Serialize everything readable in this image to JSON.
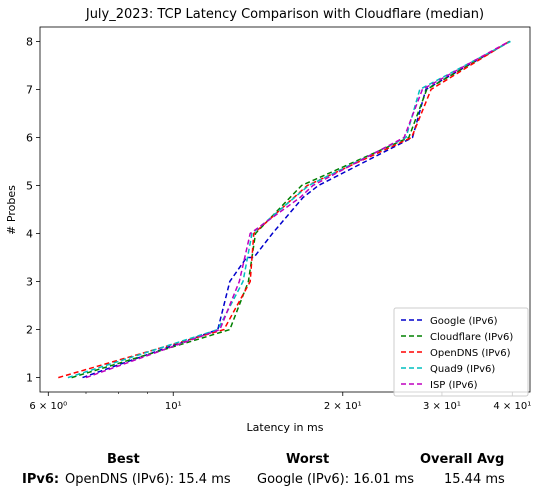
{
  "chart_data": {
    "type": "line",
    "title": "July_2023: TCP Latency Comparison with Cloudflare (median)",
    "xlabel": "Latency in ms",
    "ylabel": "# Probes",
    "xscale": "log",
    "xlim": [
      5.8,
      43
    ],
    "ylim": [
      0.7,
      8.3
    ],
    "xticks": [
      {
        "value": 6,
        "label": "6 × 10⁰"
      },
      {
        "value": 10,
        "label": "10¹"
      },
      {
        "value": 20,
        "label": "2 × 10¹"
      },
      {
        "value": 30,
        "label": "3 × 10¹"
      },
      {
        "value": 40,
        "label": "4 × 10¹"
      }
    ],
    "yticks": [
      1,
      2,
      3,
      4,
      5,
      6,
      7,
      8
    ],
    "grid": false,
    "legend": "lower-right",
    "series": [
      {
        "name": "Google (IPv6)",
        "color": "#0000cc",
        "dash": "dashed",
        "points": [
          [
            6.9,
            1
          ],
          [
            12.0,
            2
          ],
          [
            12.6,
            3
          ],
          [
            13.5,
            3.5
          ],
          [
            13.9,
            3.5
          ],
          [
            15.0,
            4
          ],
          [
            17.0,
            4.75
          ],
          [
            18.1,
            5
          ],
          [
            26.6,
            6
          ],
          [
            28.1,
            7
          ],
          [
            39.6,
            8
          ]
        ]
      },
      {
        "name": "Cloudflare (IPv6)",
        "color": "#008000",
        "dash": "dashed",
        "points": [
          [
            6.6,
            1
          ],
          [
            12.6,
            2
          ],
          [
            13.6,
            3
          ],
          [
            14.0,
            4
          ],
          [
            16.9,
            5
          ],
          [
            26.2,
            6
          ],
          [
            28.2,
            7
          ],
          [
            39.6,
            8
          ]
        ]
      },
      {
        "name": "OpenDNS (IPv6)",
        "color": "#ff0000",
        "dash": "dashed",
        "points": [
          [
            6.25,
            1
          ],
          [
            12.3,
            2
          ],
          [
            13.7,
            3
          ],
          [
            13.9,
            4
          ],
          [
            17.3,
            5
          ],
          [
            26.5,
            6
          ],
          [
            28.7,
            7
          ],
          [
            39.5,
            8
          ]
        ]
      },
      {
        "name": "Quad9 (IPv6)",
        "color": "#00bfbf",
        "dash": "dashed",
        "points": [
          [
            6.5,
            1
          ],
          [
            12.0,
            2
          ],
          [
            13.3,
            3
          ],
          [
            13.8,
            4
          ],
          [
            17.4,
            5
          ],
          [
            25.9,
            6
          ],
          [
            27.4,
            7
          ],
          [
            39.7,
            8
          ]
        ]
      },
      {
        "name": "ISP (IPv6)",
        "color": "#bf00bf",
        "dash": "dashed",
        "points": [
          [
            7.0,
            1
          ],
          [
            12.1,
            2
          ],
          [
            13.1,
            3
          ],
          [
            13.7,
            4
          ],
          [
            16.8,
            4.75
          ],
          [
            17.7,
            5
          ],
          [
            25.7,
            6
          ],
          [
            27.7,
            7
          ],
          [
            39.5,
            8
          ]
        ]
      }
    ]
  },
  "summary": {
    "best_header": "Best",
    "worst_header": "Worst",
    "avg_header": "Overall Avg",
    "row_label": "IPv6:",
    "best_value": "OpenDNS (IPv6): 15.4 ms",
    "worst_value": "Google (IPv6): 16.01 ms",
    "avg_value": "15.44 ms"
  }
}
